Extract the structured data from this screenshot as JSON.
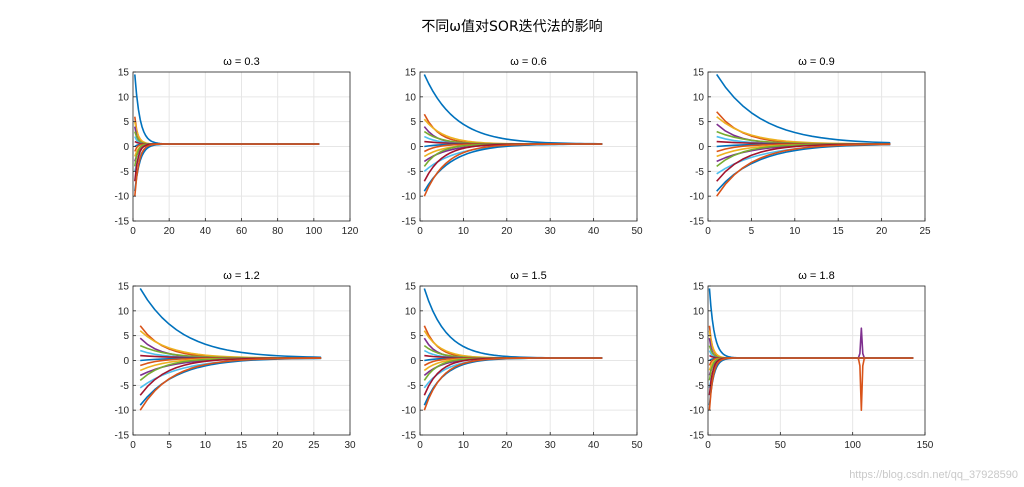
{
  "figure": {
    "title": "不同ω值对SOR迭代法的影响",
    "watermark": "https://blog.csdn.net/qq_37928590"
  },
  "chart_data": [
    {
      "type": "line",
      "title": "ω = 0.3",
      "omega": 0.3,
      "xlim": [
        0,
        120
      ],
      "xticks": [
        0,
        20,
        40,
        60,
        80,
        100,
        120
      ],
      "ylim": [
        -15,
        15
      ],
      "yticks": [
        -15,
        -10,
        -5,
        0,
        5,
        10,
        15
      ],
      "grid": true,
      "iterations": 103,
      "converged_value": 0.5,
      "initial_values": [
        14.5,
        6,
        5,
        4,
        3,
        2,
        1,
        0,
        -1,
        -2,
        -3,
        -4,
        -5,
        -7,
        -9,
        -10
      ],
      "decay_rate": [
        0.35,
        0.65,
        0.5,
        0.8,
        0.55,
        0.7,
        0.45,
        0.6,
        0.75,
        0.5,
        0.4,
        0.65,
        0.3,
        0.55,
        0.35,
        0.45
      ]
    },
    {
      "type": "line",
      "title": "ω = 0.6",
      "omega": 0.6,
      "xlim": [
        0,
        50
      ],
      "xticks": [
        0,
        10,
        20,
        30,
        40,
        50
      ],
      "ylim": [
        -15,
        15
      ],
      "yticks": [
        -15,
        -10,
        -5,
        0,
        5,
        10,
        15
      ],
      "grid": true,
      "iterations": 42,
      "converged_value": 0.5,
      "initial_values": [
        14.5,
        6.5,
        5.5,
        4,
        3,
        2,
        1,
        0,
        -1,
        -2,
        -3,
        -4,
        -5,
        -7,
        -9,
        -10
      ],
      "decay_rate": [
        0.14,
        0.3,
        0.22,
        0.35,
        0.25,
        0.3,
        0.2,
        0.28,
        0.33,
        0.22,
        0.18,
        0.28,
        0.14,
        0.24,
        0.16,
        0.2
      ]
    },
    {
      "type": "line",
      "title": "ω = 0.9",
      "omega": 0.9,
      "xlim": [
        0,
        25
      ],
      "xticks": [
        0,
        5,
        10,
        15,
        20,
        25
      ],
      "ylim": [
        -15,
        15
      ],
      "yticks": [
        -15,
        -10,
        -5,
        0,
        5,
        10,
        15
      ],
      "grid": true,
      "iterations": 21,
      "converged_value": 0.5,
      "initial_values": [
        14.5,
        7,
        6,
        4.5,
        3,
        2,
        1,
        0,
        -1,
        -2,
        -3,
        -4,
        -5.5,
        -7,
        -9,
        -10
      ],
      "decay_rate": [
        0.2,
        0.35,
        0.28,
        0.42,
        0.3,
        0.38,
        0.26,
        0.34,
        0.4,
        0.3,
        0.24,
        0.34,
        0.2,
        0.3,
        0.22,
        0.26
      ]
    },
    {
      "type": "line",
      "title": "ω = 1.2",
      "omega": 1.2,
      "xlim": [
        0,
        30
      ],
      "xticks": [
        0,
        5,
        10,
        15,
        20,
        25,
        30
      ],
      "ylim": [
        -15,
        15
      ],
      "yticks": [
        -15,
        -10,
        -5,
        0,
        5,
        10,
        15
      ],
      "grid": true,
      "iterations": 26,
      "converged_value": 0.5,
      "initial_values": [
        14.5,
        7,
        6,
        4.5,
        3,
        2,
        1,
        0,
        -1,
        -2,
        -3,
        -4,
        -5.5,
        -7,
        -9,
        -10
      ],
      "decay_rate": [
        0.18,
        0.32,
        0.25,
        0.38,
        0.27,
        0.34,
        0.23,
        0.3,
        0.36,
        0.27,
        0.21,
        0.3,
        0.18,
        0.27,
        0.2,
        0.23
      ]
    },
    {
      "type": "line",
      "title": "ω = 1.5",
      "omega": 1.5,
      "xlim": [
        0,
        50
      ],
      "xticks": [
        0,
        10,
        20,
        30,
        40,
        50
      ],
      "ylim": [
        -15,
        15
      ],
      "yticks": [
        -15,
        -10,
        -5,
        0,
        5,
        10,
        15
      ],
      "grid": true,
      "iterations": 42,
      "converged_value": 0.5,
      "initial_values": [
        14.5,
        7,
        6,
        4.5,
        3,
        2,
        1,
        0,
        -1,
        -2,
        -3,
        -4,
        -5.5,
        -7,
        -9,
        -10
      ],
      "decay_rate": [
        0.2,
        0.34,
        0.27,
        0.4,
        0.29,
        0.36,
        0.25,
        0.32,
        0.38,
        0.29,
        0.23,
        0.32,
        0.2,
        0.29,
        0.22,
        0.25
      ]
    },
    {
      "type": "line",
      "title": "ω = 1.8",
      "omega": 1.8,
      "xlim": [
        0,
        150
      ],
      "xticks": [
        0,
        50,
        100,
        150
      ],
      "ylim": [
        -15,
        15
      ],
      "yticks": [
        -15,
        -10,
        -5,
        0,
        5,
        10,
        15
      ],
      "grid": true,
      "iterations": 142,
      "converged_value": 0.5,
      "initial_values": [
        14.5,
        7,
        6,
        4.5,
        3,
        2,
        1,
        0,
        -1,
        -2,
        -3,
        -4,
        -5.5,
        -7,
        -9,
        -10
      ],
      "decay_rate": [
        0.3,
        0.5,
        0.4,
        0.6,
        0.45,
        0.55,
        0.38,
        0.48,
        0.58,
        0.45,
        0.35,
        0.5,
        0.3,
        0.45,
        0.33,
        0.4
      ],
      "spike": {
        "x": 106,
        "up": 6.5,
        "down": -10
      }
    }
  ],
  "colors": [
    "#0072BD",
    "#D95319",
    "#EDB120",
    "#7E2F8E",
    "#77AC30",
    "#4DBEEE",
    "#A2142F"
  ],
  "axis_color": "#262626",
  "grid_color": "#e6e6e6"
}
